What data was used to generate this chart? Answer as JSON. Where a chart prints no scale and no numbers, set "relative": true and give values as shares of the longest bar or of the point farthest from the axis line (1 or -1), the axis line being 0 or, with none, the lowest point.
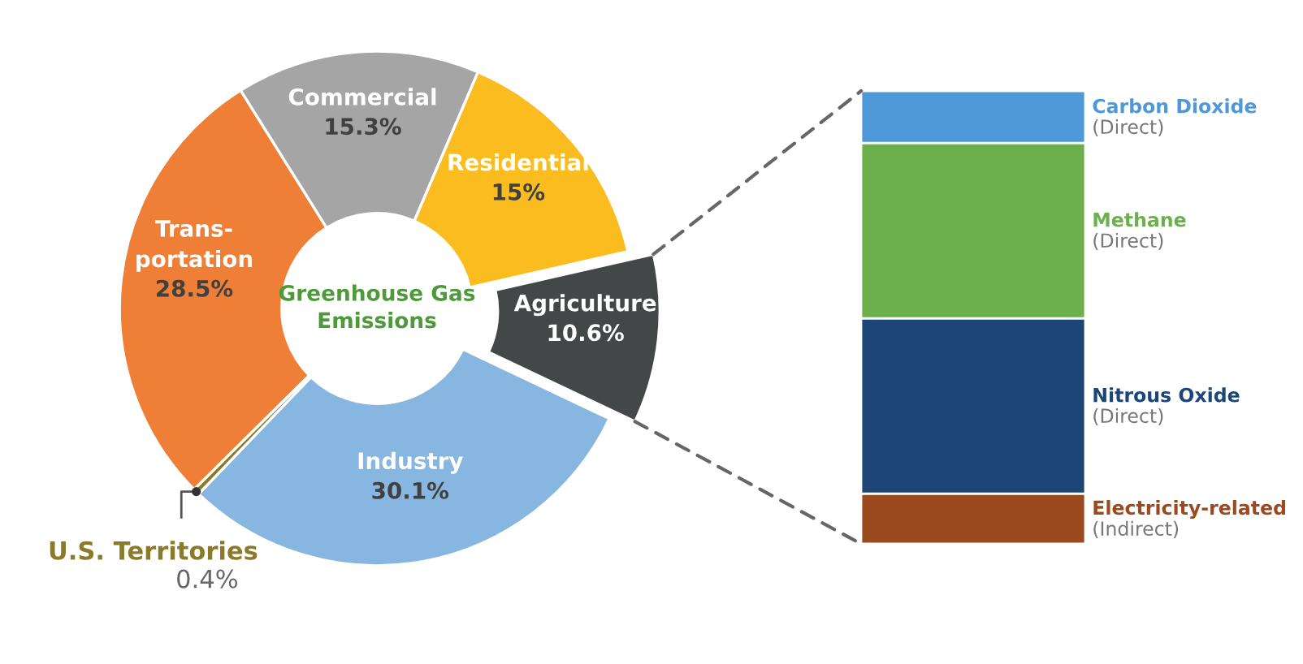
{
  "chart_data": [
    {
      "type": "donut",
      "title": "Greenhouse Gas\nEmissions",
      "categories": [
        "Commercial",
        "Residential",
        "Agriculture",
        "Industry",
        "U.S. Territories",
        "Trans-\nportation"
      ],
      "values": [
        15.3,
        15,
        10.6,
        30.1,
        0.4,
        28.5
      ],
      "value_labels": [
        "15.3%",
        "15%",
        "10.6%",
        "30.1%",
        "0.4%",
        "28.5%"
      ],
      "colors": [
        "#a5a5a5",
        "#fbbc1f",
        "#444748",
        "#87b6e0",
        "#8a7a2a",
        "#ef7f37"
      ]
    },
    {
      "type": "bar",
      "stacked": true,
      "relative": true,
      "categories": [
        null
      ],
      "series": [
        {
          "name": "Electricity-related",
          "color": "#9b4a20",
          "values": [
            0.111
          ]
        },
        {
          "name": "Nitrous Oxide",
          "color": "#1b4677",
          "values": [
            0.387
          ]
        },
        {
          "name": "Methane",
          "color": "#6cb04e",
          "values": [
            0.387
          ]
        },
        {
          "name": "Carbon Dioxide",
          "color": "#4f98d8",
          "values": [
            0.115
          ]
        }
      ],
      "annotations": [
        "(Indirect)",
        "(Direct)",
        "(Direct)",
        "(Direct)"
      ]
    }
  ]
}
